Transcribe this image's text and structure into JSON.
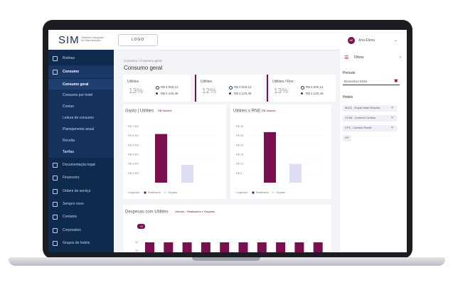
{
  "header": {
    "logo": "SIM",
    "tagline": "Sistema Integrado de Manutenção",
    "logo_button": "LOGO",
    "user_initials": "AE",
    "user_name": "Ana Elena"
  },
  "sidebar": {
    "items": [
      {
        "label": "Rotinas"
      },
      {
        "label": "Consumo"
      },
      {
        "label": "Consumo geral",
        "sub": true
      },
      {
        "label": "Consumo por hotel",
        "sub": true
      },
      {
        "label": "Contas",
        "sub": true
      },
      {
        "label": "Leitura de consumo",
        "sub": true
      },
      {
        "label": "Planejamento anual",
        "sub": true
      },
      {
        "label": "Receita",
        "sub": true
      },
      {
        "label": "Tarifas",
        "sub": true
      },
      {
        "label": "Documentação legal"
      },
      {
        "label": "Financeiro"
      },
      {
        "label": "Ordem de serviço"
      },
      {
        "label": "Sempre novo"
      },
      {
        "label": "Contatos"
      },
      {
        "label": "Corporativo"
      },
      {
        "label": "Grupos de hotéis"
      }
    ]
  },
  "main": {
    "breadcrumb": "Consumo / Consumo geral",
    "title": "Consumo geral",
    "cards": [
      {
        "title": "Utilities",
        "percent": "13%",
        "value_1": "R$ 4.000,12",
        "value_2": "R$ 2.120,45"
      },
      {
        "title": "Utilities",
        "percent": "12%",
        "value_1": "R$ 4.000,12",
        "value_2": "R$ 2.120,45"
      },
      {
        "title": "Utilities / Roo",
        "percent": "13%",
        "value_1": "R$ 4.000,12",
        "value_2": "R$ 2.120,45"
      }
    ],
    "charts": [
      {
        "type": "bar",
        "title": "Gasto | Utilities",
        "subtitle": "R$ Valores",
        "ylim": [
          1000,
          7000
        ],
        "yticks": [
          {
            "value": 7000,
            "label": "R$ 7.000"
          },
          {
            "value": 6000,
            "label": "R$ 6.000"
          },
          {
            "value": 5000,
            "label": "R$ 5.000"
          },
          {
            "value": 4000,
            "label": "R$ 4.000"
          },
          {
            "value": 3000,
            "label": "R$ 3.000"
          },
          {
            "value": 2000,
            "label": "R$ 2.000"
          }
        ],
        "legend_title": "Legenda:",
        "series": [
          {
            "name": "Realizado",
            "color": "#7a0f4f",
            "values": [
              6200
            ]
          },
          {
            "name": "Orçado",
            "color": "#dcdcf5",
            "values": [
              2900
            ]
          }
        ]
      },
      {
        "type": "bar",
        "title": "Utilities x RNE",
        "subtitle": "R$ Valores",
        "ylim": [
          0,
          30
        ],
        "yticks": [
          {
            "value": 30,
            "label": "R$ 30"
          },
          {
            "value": 25,
            "label": "R$ 25"
          },
          {
            "value": 20,
            "label": "R$ 20"
          },
          {
            "value": 15,
            "label": "R$ 15"
          },
          {
            "value": 10,
            "label": "R$ 10"
          },
          {
            "value": 5,
            "label": "R$ 5"
          }
        ],
        "legend_title": "Legenda:",
        "series": [
          {
            "name": "Realizado",
            "color": "#7a0f4f",
            "values": [
              27
            ]
          },
          {
            "name": "Orçado",
            "color": "#dcdcf5",
            "values": [
              10
            ]
          }
        ]
      },
      {
        "type": "bar",
        "title": "Despesas com Utilities",
        "subtitle": "Valores - Realizados x Orçados",
        "tag": "+9",
        "ylim": [
          0,
          25
        ],
        "yticks": [
          20,
          15
        ],
        "color": "#7a0f4f",
        "values": [
          20,
          20,
          20,
          20,
          20,
          20,
          20,
          20,
          20,
          20
        ]
      }
    ]
  },
  "filters": {
    "title": "Filtros",
    "period_label": "Período",
    "period_value": "Dezembro 2018",
    "hotels_label": "Hotéis",
    "hotels": [
      "M101 - Royal Hotel Resorts",
      "CC06 - Comfort Curitiba",
      "CF5 - Comfort Recife"
    ],
    "more": "+57"
  }
}
